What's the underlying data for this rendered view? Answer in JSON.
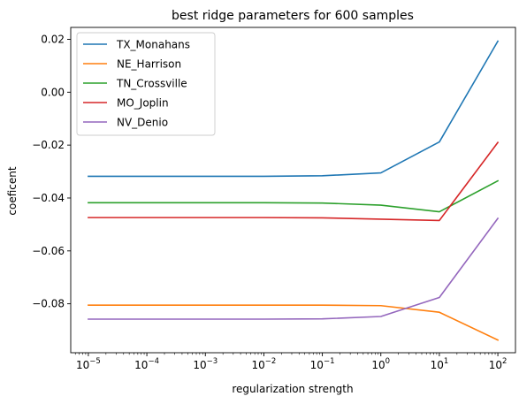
{
  "chart_data": {
    "type": "line",
    "title": "best ridge parameters for 600 samples",
    "xlabel": "regularization strength",
    "ylabel": "coeficent",
    "xscale": "log",
    "xlim": [
      5e-06,
      200
    ],
    "ylim": [
      -0.0985,
      0.0245
    ],
    "grid": false,
    "legend_position": "top-left",
    "x": [
      1e-05,
      0.0001,
      0.001,
      0.01,
      0.1,
      1,
      10,
      100
    ],
    "x_ticks": [
      {
        "value": 1e-05,
        "base": "10",
        "exp": "−5"
      },
      {
        "value": 0.0001,
        "base": "10",
        "exp": "−4"
      },
      {
        "value": 0.001,
        "base": "10",
        "exp": "−3"
      },
      {
        "value": 0.01,
        "base": "10",
        "exp": "−2"
      },
      {
        "value": 0.1,
        "base": "10",
        "exp": "−1"
      },
      {
        "value": 1,
        "base": "10",
        "exp": "0"
      },
      {
        "value": 10,
        "base": "10",
        "exp": "1"
      },
      {
        "value": 100,
        "base": "10",
        "exp": "2"
      }
    ],
    "y_ticks": [
      {
        "value": 0.02,
        "label": "0.02"
      },
      {
        "value": 0.0,
        "label": "0.00"
      },
      {
        "value": -0.02,
        "label": "−0.02"
      },
      {
        "value": -0.04,
        "label": "−0.04"
      },
      {
        "value": -0.06,
        "label": "−0.06"
      },
      {
        "value": -0.08,
        "label": "−0.08"
      }
    ],
    "series": [
      {
        "name": "TX_Monahans",
        "color": "#1f77b4",
        "values": [
          -0.0318,
          -0.0318,
          -0.0318,
          -0.0318,
          -0.0316,
          -0.0305,
          -0.0188,
          0.0193
        ]
      },
      {
        "name": "NE_Harrison",
        "color": "#ff7f0e",
        "values": [
          -0.0805,
          -0.0805,
          -0.0805,
          -0.0805,
          -0.0805,
          -0.0807,
          -0.0832,
          -0.0937
        ]
      },
      {
        "name": "TN_Crossville",
        "color": "#2ca02c",
        "values": [
          -0.0418,
          -0.0418,
          -0.0418,
          -0.0418,
          -0.0419,
          -0.0427,
          -0.0452,
          -0.0335
        ]
      },
      {
        "name": "MO_Joplin",
        "color": "#d62728",
        "values": [
          -0.0474,
          -0.0474,
          -0.0474,
          -0.0474,
          -0.0475,
          -0.048,
          -0.0485,
          -0.019
        ]
      },
      {
        "name": "NV_Denio",
        "color": "#9467bd",
        "values": [
          -0.0858,
          -0.0858,
          -0.0858,
          -0.0858,
          -0.0857,
          -0.0848,
          -0.0776,
          -0.0477
        ]
      }
    ]
  }
}
